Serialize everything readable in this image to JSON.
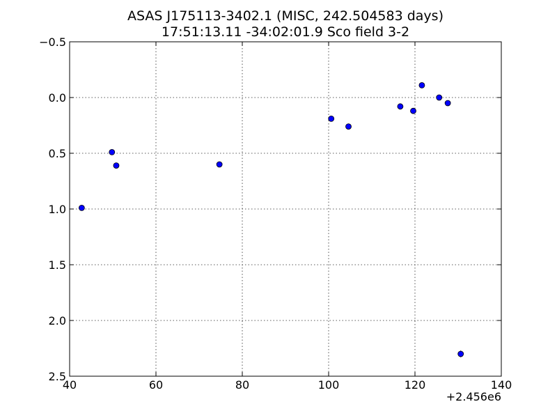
{
  "chart_data": {
    "type": "scatter",
    "title": "ASAS J175113-3402.1  (MISC, 242.504583 days)",
    "subtitle": "17:51:13.11 -34:02:01.9 Sco field 3-2",
    "xlabel": "",
    "ylabel": "",
    "x_offset_label": "+2.456e6",
    "xlim": [
      40,
      140
    ],
    "ylim": [
      2.5,
      -0.5
    ],
    "y_inverted": true,
    "grid": true,
    "x_ticks": [
      40,
      60,
      80,
      100,
      120,
      140
    ],
    "x_tick_labels": [
      "40",
      "60",
      "80",
      "100",
      "120",
      "140"
    ],
    "y_ticks": [
      -0.5,
      0.0,
      0.5,
      1.0,
      1.5,
      2.0,
      2.5
    ],
    "y_tick_labels": [
      "−0.5",
      "0.0",
      "0.5",
      "1.0",
      "1.5",
      "2.0",
      "2.5"
    ],
    "marker_color": "#0000ff",
    "series": [
      {
        "x": [
          42.8,
          49.8,
          50.8,
          74.7,
          100.6,
          104.6,
          116.6,
          119.6,
          121.6,
          125.6,
          127.6,
          130.6
        ],
        "y": [
          0.99,
          0.49,
          0.61,
          0.6,
          0.19,
          0.26,
          0.08,
          0.12,
          -0.11,
          0.0,
          0.05,
          2.3
        ],
        "err": [
          0.02,
          0.02,
          0.02,
          0.02,
          0.02,
          0.02,
          0.02,
          0.02,
          0.02,
          0.02,
          0.02,
          0.03
        ]
      }
    ]
  }
}
